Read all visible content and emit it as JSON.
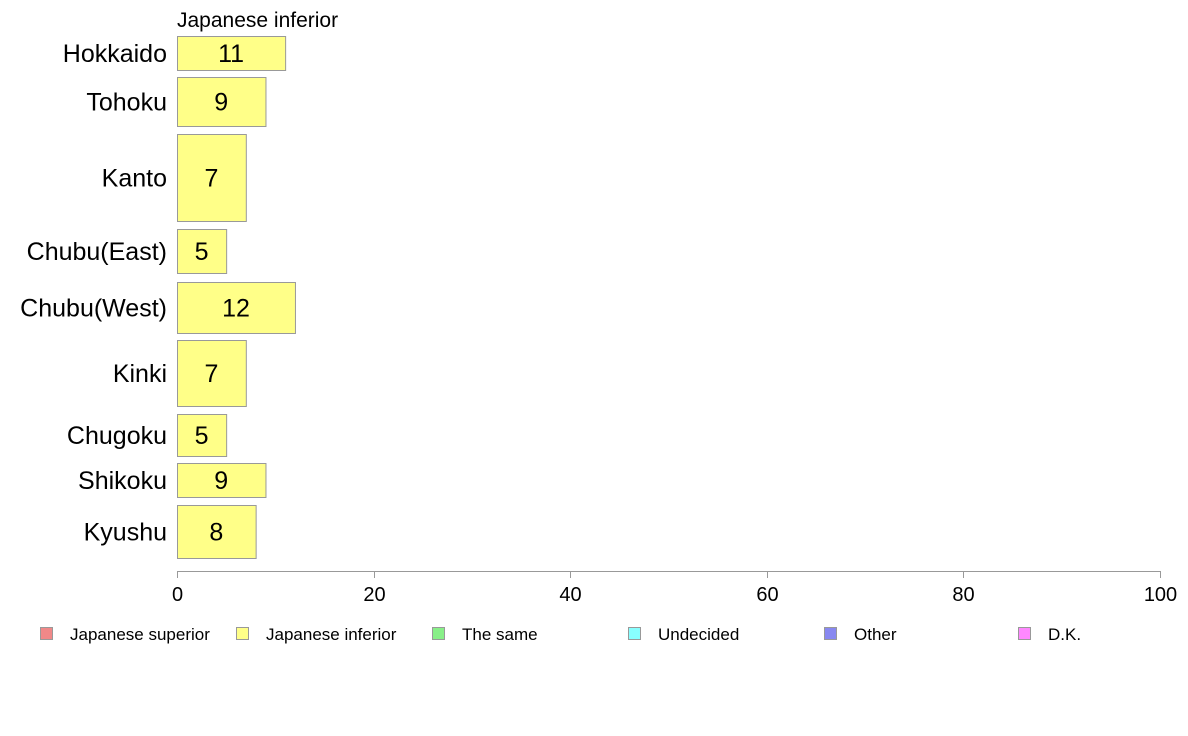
{
  "chart_data": {
    "type": "bar",
    "orientation": "horizontal",
    "subtitle": "Japanese inferior",
    "categories": [
      "Hokkaido",
      "Tohoku",
      "Kanto",
      "Chubu(East)",
      "Chubu(West)",
      "Kinki",
      "Chugoku",
      "Shikoku",
      "Kyushu"
    ],
    "values": [
      11,
      9,
      7,
      5,
      12,
      7,
      5,
      9,
      8
    ],
    "data_labels": [
      "11",
      "9",
      "7",
      "5",
      "12",
      "7",
      "5",
      "9",
      "8"
    ],
    "xlim": [
      0,
      100
    ],
    "xticks": [
      0,
      20,
      40,
      60,
      80,
      100
    ],
    "xtick_labels": [
      "0",
      "20",
      "40",
      "60",
      "80",
      "100"
    ],
    "grid": false,
    "bar_color": "#ffff88",
    "bar_edge_color": "#999999",
    "legend_position": "bottom",
    "legend": [
      {
        "label": "Japanese superior",
        "color": "#f08888"
      },
      {
        "label": "Japanese inferior",
        "color": "#ffff88"
      },
      {
        "label": "The same",
        "color": "#88f088"
      },
      {
        "label": "Undecided",
        "color": "#88ffff"
      },
      {
        "label": "Other",
        "color": "#8888f0"
      },
      {
        "label": "D.K.",
        "color": "#ff88ff"
      }
    ]
  }
}
